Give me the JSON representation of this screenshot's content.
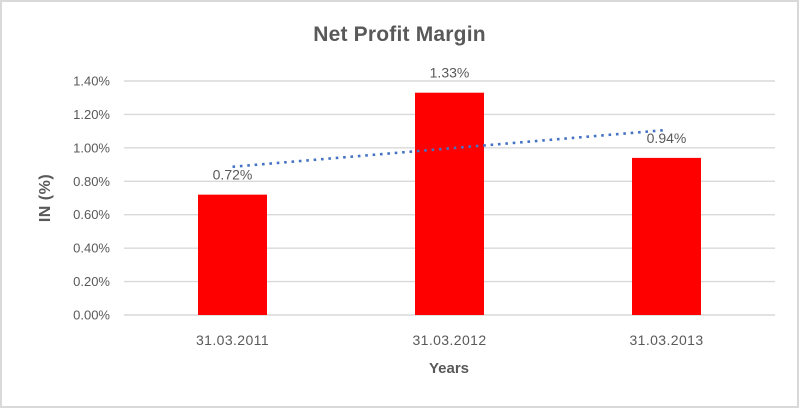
{
  "chart_data": {
    "type": "bar",
    "title": "Net Profit Margin",
    "xlabel": "Years",
    "ylabel": "IN (%)",
    "categories": [
      "31.03.2011",
      "31.03.2012",
      "31.03.2013"
    ],
    "values": [
      0.72,
      1.33,
      0.94
    ],
    "data_labels": [
      "0.72%",
      "1.33%",
      "0.94%"
    ],
    "y_tick_labels": [
      "0.00%",
      "0.20%",
      "0.40%",
      "0.60%",
      "0.80%",
      "1.00%",
      "1.20%",
      "1.40%"
    ],
    "ylim": [
      0,
      1.4
    ],
    "y_step": 0.2,
    "grid": true,
    "legend_position": "none",
    "series_name": "Net Profit Margin",
    "bar_color": "#ff0000",
    "trendline": {
      "type": "linear",
      "style": "dotted",
      "color": "#4472c4",
      "start_value": 0.887,
      "end_value": 1.107
    }
  },
  "colors": {
    "text": "#595959",
    "gridline": "#d9d9d9",
    "border": "#d9d9d9",
    "background": "#ffffff"
  }
}
